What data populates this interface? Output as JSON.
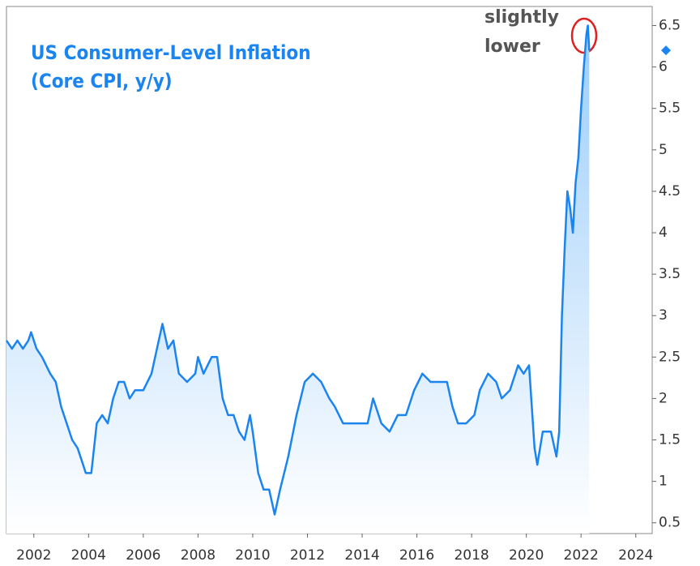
{
  "chart_data": {
    "type": "line",
    "title": [
      "US Consumer-Level Inflation",
      "(Core CPI, y/y)"
    ],
    "annotation": "slightly lower",
    "color": "#1a84f0",
    "x": [
      2001.0,
      2001.2,
      2001.4,
      2001.6,
      2001.8,
      2001.9,
      2002.1,
      2002.3,
      2002.6,
      2002.8,
      2003.0,
      2003.2,
      2003.4,
      2003.6,
      2003.8,
      2003.9,
      2004.1,
      2004.3,
      2004.5,
      2004.7,
      2004.9,
      2005.1,
      2005.3,
      2005.5,
      2005.7,
      2006.0,
      2006.3,
      2006.5,
      2006.7,
      2006.9,
      2007.1,
      2007.3,
      2007.6,
      2007.9,
      2008.0,
      2008.2,
      2008.5,
      2008.7,
      2008.9,
      2009.1,
      2009.3,
      2009.5,
      2009.7,
      2009.9,
      2010.0,
      2010.2,
      2010.4,
      2010.6,
      2010.8,
      2011.0,
      2011.3,
      2011.6,
      2011.9,
      2012.2,
      2012.5,
      2012.8,
      2013.0,
      2013.3,
      2013.6,
      2013.9,
      2014.2,
      2014.4,
      2014.7,
      2015.0,
      2015.3,
      2015.6,
      2015.9,
      2016.2,
      2016.5,
      2016.8,
      2017.1,
      2017.3,
      2017.5,
      2017.8,
      2018.1,
      2018.3,
      2018.6,
      2018.9,
      2019.1,
      2019.4,
      2019.7,
      2019.9,
      2020.1,
      2020.3,
      2020.4,
      2020.6,
      2020.9,
      2021.1,
      2021.2,
      2021.3,
      2021.4,
      2021.5,
      2021.6,
      2021.7,
      2021.8,
      2021.9,
      2022.0,
      2022.1,
      2022.2,
      2022.25,
      2022.3
    ],
    "values": [
      2.7,
      2.6,
      2.7,
      2.6,
      2.7,
      2.8,
      2.6,
      2.5,
      2.3,
      2.2,
      1.9,
      1.7,
      1.5,
      1.4,
      1.2,
      1.1,
      1.1,
      1.7,
      1.8,
      1.7,
      2.0,
      2.2,
      2.2,
      2.0,
      2.1,
      2.1,
      2.3,
      2.6,
      2.9,
      2.6,
      2.7,
      2.3,
      2.2,
      2.3,
      2.5,
      2.3,
      2.5,
      2.5,
      2.0,
      1.8,
      1.8,
      1.6,
      1.5,
      1.8,
      1.6,
      1.1,
      0.9,
      0.9,
      0.6,
      0.9,
      1.3,
      1.8,
      2.2,
      2.3,
      2.2,
      2.0,
      1.9,
      1.7,
      1.7,
      1.7,
      1.7,
      2.0,
      1.7,
      1.6,
      1.8,
      1.8,
      2.1,
      2.3,
      2.2,
      2.2,
      2.2,
      1.9,
      1.7,
      1.7,
      1.8,
      2.1,
      2.3,
      2.2,
      2.0,
      2.1,
      2.4,
      2.3,
      2.4,
      1.4,
      1.2,
      1.6,
      1.6,
      1.3,
      1.6,
      3.0,
      3.8,
      4.5,
      4.3,
      4.0,
      4.6,
      4.9,
      5.5,
      6.0,
      6.4,
      6.5,
      6.2
    ],
    "current_marker": 6.2,
    "xlim": [
      2001.0,
      2024.6
    ],
    "xticks": [
      2002,
      2004,
      2006,
      2008,
      2010,
      2012,
      2014,
      2016,
      2018,
      2020,
      2022,
      2024
    ],
    "ylim": [
      0.37,
      6.73
    ],
    "yticks": [
      0.5,
      1,
      1.5,
      2,
      2.5,
      3,
      3.5,
      4,
      4.5,
      5,
      5.5,
      6,
      6.5
    ]
  }
}
